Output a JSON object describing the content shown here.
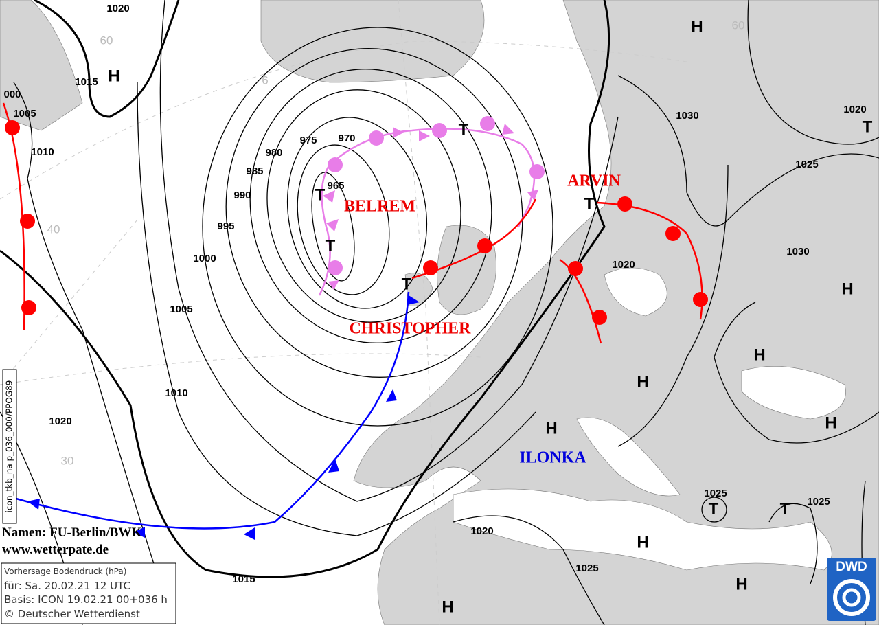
{
  "isobar_labels": [
    "1020",
    "1015",
    "000",
    "1005",
    "1010",
    "975",
    "970",
    "980",
    "985",
    "965",
    "990",
    "995",
    "1000",
    "1005",
    "1010",
    "1020",
    "1030",
    "1020",
    "1025",
    "1030",
    "1020",
    "1025",
    "1025",
    "1020",
    "1025",
    "1015"
  ],
  "pressure_centers": [
    "H",
    "H",
    "H",
    "H",
    "H",
    "H",
    "H",
    "H",
    "H",
    "H",
    "T",
    "T",
    "T",
    "T",
    "T",
    "T",
    "T",
    "T"
  ],
  "latitude_labels": [
    "60",
    "6",
    "40",
    "30",
    "60"
  ],
  "system_names": [
    "BELREM",
    "CHRISTOPHER",
    "ARVIN",
    "ILONKA"
  ],
  "credits": [
    "Namen: FU-Berlin/BWK",
    "www.wetterpate.de"
  ],
  "side_code": "icon_tkb_na p_036_000/PPOG89",
  "info_box": [
    "Vorhersage Bodendruck (hPa)",
    "für:  Sa. 20.02.21  12 UTC",
    "Basis: ICON  19.02.21 00+036 h",
    "© Deutscher Wetterdienst"
  ],
  "logo": "DWD"
}
